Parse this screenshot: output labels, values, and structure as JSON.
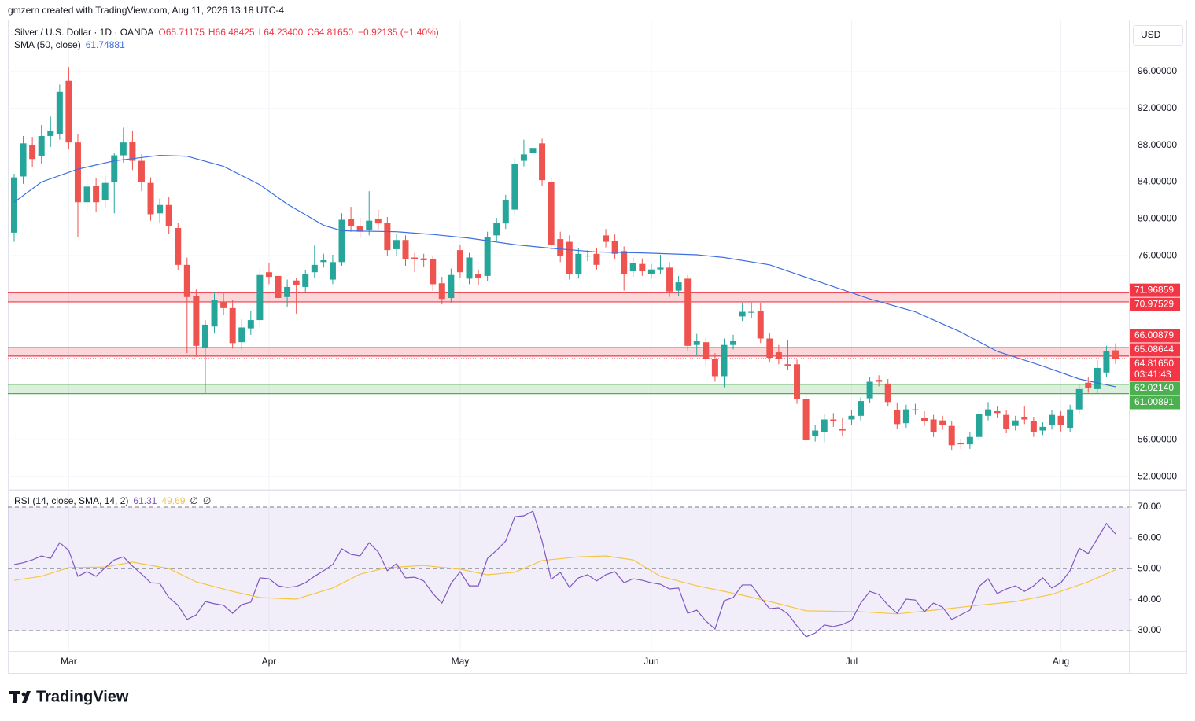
{
  "header": {
    "attribution": "gmzern created with TradingView.com, Aug 11, 2026 13:18 UTC-4",
    "symbol": "Silver / U.S. Dollar · 1D · OANDA",
    "ohlc": [
      "O65.71175",
      "H66.48425",
      "L64.23400",
      "C64.81650",
      "−0.92135 (−1.40%)"
    ],
    "currency": "USD"
  },
  "chart_data": [
    {
      "type": "candlestick",
      "up_color": "#26a69a",
      "down_color": "#ef5350",
      "candles": [
        [
          78.5,
          84.9,
          77.5,
          84.5
        ],
        [
          84.6,
          89.0,
          83.8,
          88.2
        ],
        [
          88.0,
          88.9,
          85.6,
          86.5
        ],
        [
          86.8,
          90.2,
          86.0,
          89.0
        ],
        [
          89.0,
          91.1,
          87.8,
          89.6
        ],
        [
          89.2,
          94.6,
          88.6,
          93.8
        ],
        [
          95.0,
          96.5,
          87.6,
          88.3
        ],
        [
          88.3,
          89.2,
          78.0,
          81.8
        ],
        [
          81.8,
          84.6,
          80.7,
          83.5
        ],
        [
          83.6,
          84.4,
          80.8,
          81.8
        ],
        [
          82.0,
          84.7,
          81.2,
          83.9
        ],
        [
          84.0,
          87.2,
          80.6,
          86.9
        ],
        [
          86.9,
          89.9,
          86.1,
          88.3
        ],
        [
          88.4,
          89.6,
          85.3,
          86.3
        ],
        [
          86.3,
          87.0,
          83.0,
          84.0
        ],
        [
          83.9,
          84.5,
          79.8,
          80.5
        ],
        [
          80.6,
          82.2,
          79.5,
          81.5
        ],
        [
          81.5,
          82.4,
          78.4,
          79.2
        ],
        [
          79.0,
          79.6,
          74.4,
          75.0
        ],
        [
          75.0,
          75.8,
          65.4,
          71.5
        ],
        [
          71.6,
          72.3,
          65.0,
          66.2
        ],
        [
          66.0,
          69.0,
          61.06,
          68.5
        ],
        [
          68.3,
          72.0,
          67.6,
          71.2
        ],
        [
          71.0,
          72.0,
          69.6,
          70.3
        ],
        [
          70.3,
          71.2,
          65.9,
          66.5
        ],
        [
          66.6,
          69.1,
          65.8,
          68.2
        ],
        [
          68.1,
          70.0,
          67.4,
          69.0
        ],
        [
          69.0,
          74.6,
          68.4,
          73.9
        ],
        [
          74.2,
          75.2,
          72.9,
          73.7
        ],
        [
          73.8,
          75.0,
          70.8,
          71.4
        ],
        [
          71.5,
          73.4,
          70.4,
          72.6
        ],
        [
          73.3,
          73.6,
          69.7,
          72.8
        ],
        [
          72.6,
          74.4,
          71.9,
          74.0
        ],
        [
          74.2,
          77.1,
          73.6,
          75.0
        ],
        [
          75.3,
          76.2,
          74.7,
          75.5
        ],
        [
          73.4,
          76.1,
          72.9,
          75.3
        ],
        [
          75.3,
          80.6,
          74.9,
          79.9
        ],
        [
          80.0,
          81.3,
          78.6,
          79.2
        ],
        [
          79.2,
          80.1,
          77.9,
          78.6
        ],
        [
          78.8,
          83.0,
          78.2,
          79.8
        ],
        [
          80.0,
          81.0,
          78.8,
          79.5
        ],
        [
          79.6,
          80.2,
          76.0,
          76.6
        ],
        [
          76.7,
          78.4,
          76.0,
          77.7
        ],
        [
          77.7,
          78.2,
          74.9,
          75.6
        ],
        [
          75.8,
          76.3,
          74.2,
          75.6
        ],
        [
          75.7,
          76.2,
          74.8,
          75.5
        ],
        [
          75.6,
          76.0,
          72.2,
          72.9
        ],
        [
          73.0,
          73.7,
          70.7,
          71.3
        ],
        [
          71.4,
          74.6,
          70.9,
          73.9
        ],
        [
          76.6,
          77.2,
          73.6,
          74.2
        ],
        [
          73.5,
          76.3,
          72.9,
          75.8
        ],
        [
          74.0,
          74.5,
          72.8,
          73.6
        ],
        [
          73.8,
          78.6,
          73.2,
          78.0
        ],
        [
          78.2,
          80.1,
          77.6,
          79.6
        ],
        [
          79.5,
          82.6,
          78.9,
          82.0
        ],
        [
          81.0,
          86.6,
          80.4,
          86.0
        ],
        [
          86.3,
          88.6,
          85.7,
          87.0
        ],
        [
          87.2,
          89.5,
          86.6,
          87.7
        ],
        [
          88.2,
          88.7,
          83.6,
          84.2
        ],
        [
          84.0,
          84.4,
          76.6,
          77.2
        ],
        [
          77.8,
          78.6,
          75.3,
          76.0
        ],
        [
          77.5,
          78.2,
          73.4,
          74.0
        ],
        [
          74.0,
          76.8,
          73.5,
          76.2
        ],
        [
          76.0,
          76.6,
          75.4,
          76.0
        ],
        [
          76.2,
          76.8,
          74.5,
          75.0
        ],
        [
          78.2,
          78.9,
          76.9,
          77.5
        ],
        [
          77.6,
          78.3,
          75.6,
          76.2
        ],
        [
          76.5,
          77.0,
          72.2,
          74.0
        ],
        [
          74.3,
          75.8,
          73.7,
          75.2
        ],
        [
          75.1,
          75.7,
          73.8,
          74.3
        ],
        [
          74.0,
          75.1,
          73.5,
          74.5
        ],
        [
          74.5,
          76.1,
          74.0,
          74.7
        ],
        [
          74.7,
          75.3,
          71.5,
          72.1
        ],
        [
          72.2,
          73.8,
          71.6,
          73.1
        ],
        [
          73.5,
          73.9,
          65.7,
          66.2
        ],
        [
          66.3,
          67.5,
          65.2,
          66.7
        ],
        [
          66.6,
          67.2,
          64.1,
          64.8
        ],
        [
          64.8,
          65.4,
          62.3,
          62.9
        ],
        [
          62.9,
          67.0,
          61.7,
          66.3
        ],
        [
          66.3,
          67.4,
          65.8,
          66.7
        ],
        [
          69.4,
          70.9,
          68.9,
          69.9
        ],
        [
          69.8,
          70.9,
          69.2,
          69.9
        ],
        [
          70.0,
          70.8,
          66.5,
          67.0
        ],
        [
          67.0,
          67.6,
          64.4,
          64.9
        ],
        [
          65.5,
          66.3,
          64.2,
          64.8
        ],
        [
          64.2,
          66.8,
          63.6,
          64.0
        ],
        [
          64.2,
          64.7,
          59.9,
          60.4
        ],
        [
          60.4,
          61.0,
          55.6,
          56.0
        ],
        [
          56.4,
          57.6,
          55.8,
          57.0
        ],
        [
          56.8,
          58.8,
          55.7,
          58.2
        ],
        [
          58.2,
          58.9,
          57.4,
          58.0
        ],
        [
          57.2,
          58.4,
          56.4,
          57.0
        ],
        [
          58.2,
          59.2,
          57.6,
          58.6
        ],
        [
          58.6,
          60.6,
          58.1,
          60.2
        ],
        [
          60.5,
          62.8,
          60.0,
          62.3
        ],
        [
          62.5,
          63.0,
          61.8,
          62.3
        ],
        [
          62.1,
          62.6,
          59.6,
          60.1
        ],
        [
          59.2,
          60.0,
          57.2,
          57.7
        ],
        [
          57.8,
          59.8,
          57.3,
          59.3
        ],
        [
          59.3,
          59.9,
          58.7,
          59.3
        ],
        [
          58.4,
          59.1,
          57.5,
          58.0
        ],
        [
          58.2,
          58.7,
          56.3,
          56.8
        ],
        [
          58.1,
          58.6,
          57.1,
          57.6
        ],
        [
          57.5,
          58.0,
          54.9,
          55.4
        ],
        [
          55.6,
          56.1,
          55.0,
          55.5
        ],
        [
          55.5,
          56.8,
          55.0,
          56.3
        ],
        [
          56.3,
          59.3,
          55.8,
          58.8
        ],
        [
          58.6,
          60.1,
          58.1,
          59.3
        ],
        [
          59.1,
          59.6,
          58.4,
          58.9
        ],
        [
          58.7,
          59.2,
          56.7,
          57.2
        ],
        [
          57.5,
          58.6,
          57.0,
          58.1
        ],
        [
          58.5,
          59.6,
          57.7,
          58.2
        ],
        [
          58.0,
          58.5,
          56.3,
          56.8
        ],
        [
          57.0,
          57.9,
          56.5,
          57.4
        ],
        [
          57.6,
          59.2,
          57.1,
          58.7
        ],
        [
          58.6,
          59.1,
          56.9,
          57.6
        ],
        [
          57.3,
          59.8,
          56.8,
          59.3
        ],
        [
          59.3,
          62.0,
          58.8,
          61.5
        ],
        [
          62.2,
          62.8,
          61.1,
          61.6
        ],
        [
          61.5,
          64.6,
          61.0,
          63.8
        ],
        [
          63.3,
          66.2,
          62.8,
          65.6
        ],
        [
          65.71175,
          66.48425,
          64.234,
          64.8165
        ]
      ],
      "xlim": [
        -0.69,
        122.47
      ],
      "xticks": [
        {
          "value": 6,
          "label": "Mar"
        },
        {
          "value": 28,
          "label": "Apr"
        },
        {
          "value": 49,
          "label": "May"
        },
        {
          "value": 70,
          "label": "Jun"
        },
        {
          "value": 92,
          "label": "Jul"
        },
        {
          "value": 115,
          "label": "Aug"
        }
      ],
      "ylim": [
        50.64,
        101.64
      ],
      "yticks": [
        {
          "value": 96,
          "label": "96.00000"
        },
        {
          "value": 92,
          "label": "92.00000"
        },
        {
          "value": 88,
          "label": "88.00000"
        },
        {
          "value": 84,
          "label": "84.00000"
        },
        {
          "value": 80,
          "label": "80.00000"
        },
        {
          "value": 76,
          "label": "76.00000"
        },
        {
          "value": 56,
          "label": "56.00000"
        },
        {
          "value": 52,
          "label": "52.00000"
        }
      ],
      "grid": true,
      "zones": [
        {
          "values": [
            71.96859,
            70.97529
          ],
          "value_labels": [
            "71.96859",
            "70.97529"
          ],
          "color": "#f23645"
        },
        {
          "values": [
            66.00879,
            65.08644
          ],
          "value_labels": [
            "66.00879",
            "65.08644"
          ],
          "color": "#f23645"
        },
        {
          "values": [
            62.0214,
            61.00891
          ],
          "value_labels": [
            "62.02140",
            "61.00891"
          ],
          "color": "#4caf50"
        }
      ],
      "last_price": {
        "value": 64.8165,
        "label": "64.81650",
        "countdown": "03:41:43",
        "color": "#f23645"
      },
      "sma": {
        "name": "SMA (50, close)",
        "value_label": "61.74881",
        "color": "#3f6ee0",
        "x": [
          0,
          3,
          7,
          11,
          16,
          19,
          23,
          27,
          30,
          34,
          36,
          42,
          46,
          50,
          55,
          59,
          64,
          69,
          75,
          78,
          83,
          88,
          94,
          99,
          104,
          108,
          113,
          117,
          121
        ],
        "values": [
          81.8,
          84.0,
          85.4,
          86.3,
          86.9,
          86.8,
          85.7,
          83.7,
          81.6,
          79.3,
          78.7,
          78.6,
          78.3,
          77.9,
          77.2,
          76.8,
          76.4,
          76.3,
          76.1,
          75.8,
          75.0,
          73.3,
          71.3,
          69.9,
          67.7,
          65.6,
          64.0,
          62.6,
          61.74881
        ]
      }
    },
    {
      "type": "line",
      "title": "RSI (14, close, SMA, 14, 2)",
      "xlim": [
        -0.69,
        122.47
      ],
      "ylim": [
        23.38,
        75.35
      ],
      "yticks": [
        {
          "value": 70,
          "label": "70.00"
        },
        {
          "value": 60,
          "label": "60.00"
        },
        {
          "value": 50,
          "label": "50.00"
        },
        {
          "value": 40,
          "label": "40.00"
        },
        {
          "value": 30,
          "label": "30.00"
        }
      ],
      "band": [
        30,
        70
      ],
      "midline": 50,
      "extra_labels": [
        "∅",
        "∅"
      ],
      "series": [
        {
          "value_label": "61.31",
          "color": "#7e57c2",
          "values": [
            51.4,
            52.0,
            52.9,
            54.2,
            53.4,
            58.5,
            56.0,
            47.6,
            49.1,
            47.6,
            50.4,
            52.9,
            53.9,
            50.9,
            48.3,
            45.5,
            45.3,
            40.7,
            38.2,
            33.6,
            35.1,
            39.4,
            38.7,
            38.2,
            35.6,
            38.4,
            39.2,
            47.1,
            46.8,
            44.5,
            44.0,
            44.3,
            45.5,
            47.6,
            49.4,
            51.4,
            56.5,
            54.7,
            54.2,
            58.5,
            55.5,
            49.4,
            51.7,
            47.1,
            47.3,
            46.1,
            42.0,
            38.9,
            45.3,
            49.1,
            44.5,
            44.5,
            53.4,
            56.0,
            59.0,
            66.9,
            67.2,
            68.7,
            59.0,
            46.6,
            48.9,
            44.0,
            47.1,
            48.1,
            46.1,
            48.1,
            49.1,
            45.5,
            46.8,
            46.3,
            45.5,
            45.0,
            43.5,
            43.8,
            35.6,
            36.6,
            33.1,
            30.5,
            39.7,
            40.7,
            44.8,
            44.8,
            40.7,
            37.1,
            37.4,
            35.4,
            31.5,
            28.0,
            29.2,
            31.8,
            31.3,
            32.0,
            33.3,
            38.9,
            42.7,
            41.7,
            38.2,
            35.6,
            40.2,
            39.9,
            36.1,
            38.9,
            37.6,
            33.6,
            35.1,
            36.6,
            44.3,
            46.8,
            42.0,
            43.5,
            44.5,
            42.7,
            44.5,
            47.1,
            43.8,
            45.5,
            49.4,
            56.7,
            55.0,
            59.8,
            64.7,
            61.31
          ]
        },
        {
          "value_label": "49.69",
          "color": "#f5c542",
          "x": [
            0,
            3,
            6,
            10,
            13,
            17,
            20,
            24,
            27,
            31,
            35,
            38,
            41,
            45,
            49,
            52,
            55,
            58,
            62,
            65,
            68,
            71,
            75,
            80,
            84,
            87,
            93,
            97,
            101,
            106,
            110,
            114,
            118,
            121
          ],
          "values": [
            46.3,
            47.6,
            50.4,
            50.6,
            52.2,
            50.1,
            45.8,
            42.7,
            40.7,
            40.2,
            43.8,
            48.3,
            50.4,
            51.1,
            49.9,
            48.1,
            48.9,
            52.7,
            53.9,
            54.2,
            52.9,
            47.6,
            44.5,
            41.5,
            38.7,
            36.4,
            36.1,
            35.4,
            36.6,
            38.2,
            39.4,
            41.7,
            45.8,
            49.69
          ]
        }
      ]
    }
  ],
  "footer": {
    "logo": "TradingView"
  }
}
